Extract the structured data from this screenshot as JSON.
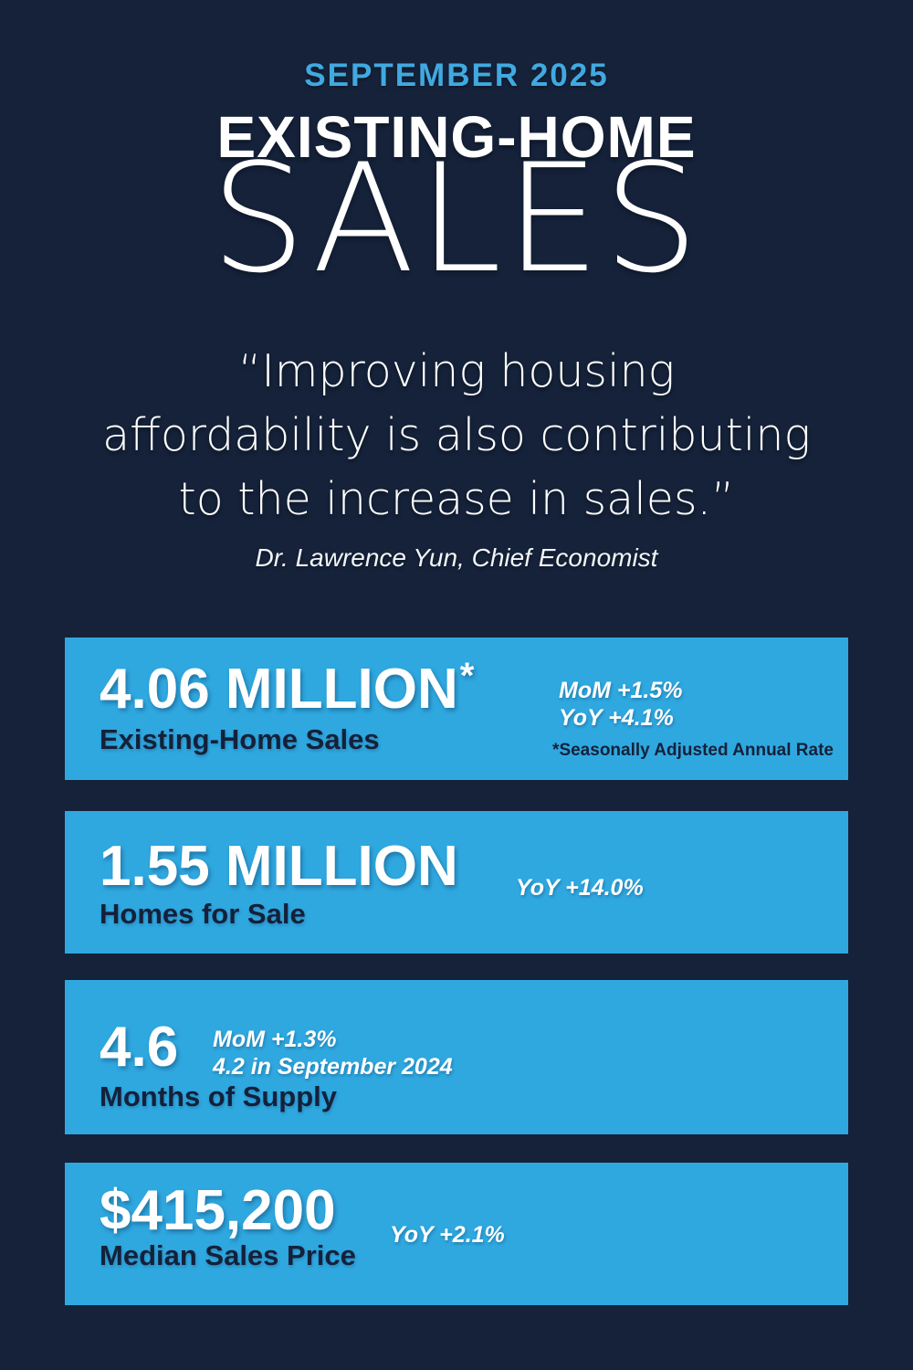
{
  "theme": {
    "background_navy": "#15223A",
    "card_blue": "#2FA8E0",
    "eyebrow_blue": "#40A9E0",
    "navy_text": "#14213A",
    "white": "#FFFFFF"
  },
  "header": {
    "eyebrow": "SEPTEMBER 2025",
    "title_top": "EXISTING-HOME",
    "title_bottom": "SALES"
  },
  "quote": {
    "lines": [
      "“Improving housing",
      "affordability is also contributing",
      "to the increase in sales.”"
    ],
    "attribution": "Dr. Lawrence Yun, Chief Economist"
  },
  "stats": [
    {
      "value": "4.06 MILLION",
      "asterisk": "*",
      "annotations": [
        "MoM +1.5%",
        "YoY +4.1%"
      ],
      "label": "Existing-Home Sales",
      "footnote": "*Seasonally Adjusted Annual Rate"
    },
    {
      "value": "1.55 MILLION",
      "annotations": [
        "YoY +14.0%"
      ],
      "label": "Homes for Sale"
    },
    {
      "value": "4.6",
      "annotations": [
        "MoM +1.3%",
        "4.2 in September 2024"
      ],
      "label": "Months of Supply"
    },
    {
      "value": "$415,200",
      "annotations": [
        "YoY +2.1%"
      ],
      "label": "Median Sales Price"
    }
  ]
}
